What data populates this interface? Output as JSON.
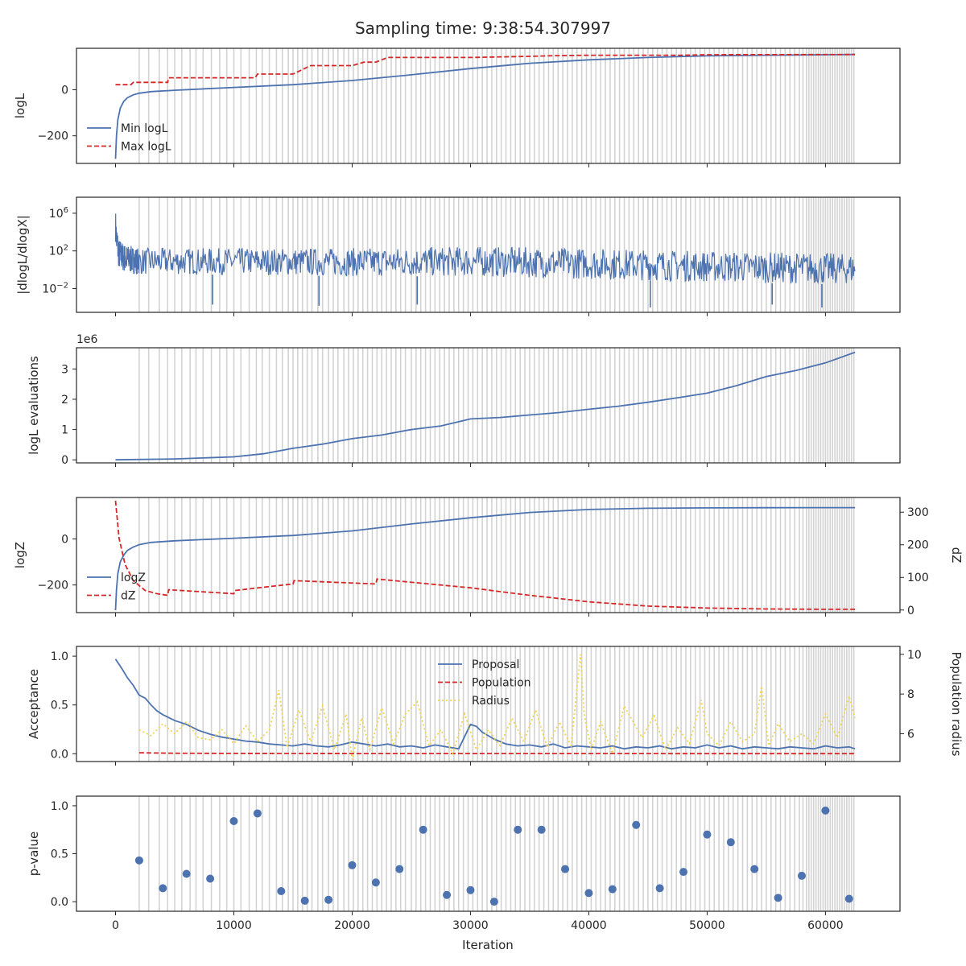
{
  "title": "Sampling time: 9:38:54.307997",
  "colors": {
    "blue": "#4c72b0",
    "red": "#d62728",
    "yellow": "#f2d54a",
    "grid": "#d3d3d3",
    "axis": "#262626"
  },
  "xaxis": {
    "label": "Iteration",
    "range": [
      -3300,
      66300
    ],
    "ticks": [
      0,
      10000,
      20000,
      30000,
      40000,
      50000,
      60000
    ],
    "tick_labels": [
      "0",
      "10000",
      "20000",
      "30000",
      "40000",
      "50000",
      "60000"
    ]
  },
  "chart_data": [
    {
      "type": "line",
      "panel": "logL",
      "ylabel": "logL",
      "ylim": [
        -320,
        180
      ],
      "yticks": [
        0,
        -200
      ],
      "ytick_labels": [
        "0",
        "−200"
      ],
      "legend": {
        "placement": "lower-left"
      },
      "series": [
        {
          "name": "Min logL",
          "style": "solid",
          "color": "#4c72b0",
          "x": [
            0,
            80,
            200,
            400,
            700,
            1000,
            1500,
            2000,
            3000,
            5000,
            10000,
            15000,
            20000,
            25000,
            30000,
            35000,
            40000,
            45000,
            50000,
            55000,
            60000,
            62500
          ],
          "y": [
            -300,
            -200,
            -130,
            -80,
            -50,
            -35,
            -22,
            -15,
            -8,
            -2,
            10,
            22,
            40,
            65,
            92,
            115,
            130,
            140,
            147,
            150,
            152,
            153
          ]
        },
        {
          "name": "Max logL",
          "style": "dashed",
          "color": "#d62728",
          "x": [
            0,
            1300,
            1500,
            2500,
            4400,
            4500,
            10000,
            11800,
            12000,
            15000,
            16500,
            20000,
            21000,
            22000,
            23000,
            30000,
            35000,
            37000,
            40000,
            48000,
            50000,
            62500
          ],
          "y": [
            22,
            22,
            32,
            32,
            32,
            52,
            52,
            52,
            68,
            68,
            105,
            105,
            120,
            120,
            140,
            140,
            145,
            148,
            150,
            150,
            152,
            153
          ]
        }
      ]
    },
    {
      "type": "line",
      "panel": "dlogL",
      "ylabel": "|dlogL/dlogX|",
      "yscale": "log",
      "ylim": [
        3e-05,
        50000000
      ],
      "yticks": [
        1000000,
        100,
        0.01
      ],
      "ytick_labels": [
        "10^6",
        "10^2",
        "10^-2"
      ],
      "band": {
        "x": [
          0,
          100,
          300,
          800,
          2000,
          10000,
          20000,
          30000,
          40000,
          50000,
          60000,
          62500
        ],
        "upper": [
          3000000,
          100000,
          2000,
          500,
          200,
          200,
          200,
          300,
          200,
          100,
          60,
          50
        ],
        "lower": [
          1000,
          10,
          1,
          0.5,
          0.3,
          0.3,
          0.2,
          0.2,
          0.1,
          0.05,
          0.03,
          0.03
        ]
      },
      "spikes": [
        {
          "x": 8200,
          "y": 0.0002
        },
        {
          "x": 17200,
          "y": 0.00015
        },
        {
          "x": 25500,
          "y": 0.0002
        },
        {
          "x": 45200,
          "y": 0.0001
        },
        {
          "x": 55500,
          "y": 0.0002
        },
        {
          "x": 59700,
          "y": 0.0001
        }
      ]
    },
    {
      "type": "line",
      "panel": "evaluations",
      "ylabel": "logL evaluations",
      "multiplier": "1e6",
      "ylim": [
        -0.1,
        3.7
      ],
      "yticks": [
        0,
        1,
        2,
        3
      ],
      "ytick_labels": [
        "0",
        "1",
        "2",
        "3"
      ],
      "series": [
        {
          "name": "",
          "style": "solid",
          "color": "#4c72b0",
          "x": [
            0,
            5000,
            10000,
            12500,
            15000,
            17500,
            20000,
            22500,
            25000,
            27500,
            30000,
            32500,
            35000,
            37500,
            40000,
            42500,
            45000,
            47500,
            50000,
            52500,
            55000,
            57500,
            60000,
            62500
          ],
          "y": [
            0,
            0.03,
            0.1,
            0.2,
            0.38,
            0.52,
            0.7,
            0.82,
            1.0,
            1.12,
            1.35,
            1.4,
            1.48,
            1.56,
            1.67,
            1.77,
            1.9,
            2.05,
            2.2,
            2.45,
            2.75,
            2.95,
            3.2,
            3.55
          ]
        }
      ]
    },
    {
      "type": "line",
      "panel": "logZ",
      "ylabel": "logZ",
      "y2label": "dZ",
      "ylim": [
        -320,
        180
      ],
      "yticks": [
        0,
        -200
      ],
      "ytick_labels": [
        "0",
        "−200"
      ],
      "y2lim": [
        -8,
        345
      ],
      "y2ticks": [
        0,
        100,
        200,
        300
      ],
      "y2tick_labels": [
        "0",
        "100",
        "200",
        "300"
      ],
      "legend": {
        "placement": "lower-left"
      },
      "series": [
        {
          "name": "logZ",
          "style": "solid",
          "color": "#4c72b0",
          "axis": "left",
          "x": [
            0,
            80,
            200,
            400,
            700,
            1000,
            1500,
            2000,
            3000,
            5000,
            10000,
            15000,
            20000,
            25000,
            30000,
            35000,
            40000,
            45000,
            50000,
            55000,
            60000,
            62500
          ],
          "y": [
            -310,
            -220,
            -150,
            -100,
            -70,
            -50,
            -35,
            -25,
            -15,
            -8,
            3,
            15,
            35,
            65,
            92,
            115,
            128,
            133,
            135,
            135.5,
            136,
            136
          ]
        },
        {
          "name": "dZ",
          "style": "dashed",
          "color": "#d62728",
          "axis": "right",
          "x": [
            0,
            300,
            800,
            1500,
            2500,
            3500,
            4400,
            4500,
            10000,
            10100,
            15000,
            15100,
            22000,
            22100,
            30000,
            35000,
            40000,
            45000,
            50000,
            55000,
            60000,
            62500
          ],
          "y": [
            335,
            220,
            140,
            90,
            60,
            50,
            45,
            62,
            50,
            60,
            80,
            90,
            80,
            95,
            68,
            45,
            25,
            12,
            6,
            3,
            2,
            2
          ]
        }
      ]
    },
    {
      "type": "line",
      "panel": "acceptance",
      "ylabel": "Acceptance",
      "y2label": "Population radius",
      "ylim": [
        -0.08,
        1.1
      ],
      "yticks": [
        0,
        0.5,
        1.0
      ],
      "ytick_labels": [
        "0.0",
        "0.5",
        "1.0"
      ],
      "y2lim": [
        4.6,
        10.4
      ],
      "y2ticks": [
        6,
        8,
        10
      ],
      "y2tick_labels": [
        "6",
        "8",
        "10"
      ],
      "legend": {
        "placement": "upper-center"
      },
      "series": [
        {
          "name": "Proposal",
          "style": "solid",
          "color": "#4c72b0",
          "axis": "left",
          "x": [
            0,
            500,
            1000,
            1500,
            2000,
            2500,
            3000,
            3500,
            4000,
            5000,
            6000,
            7000,
            8000,
            9000,
            10000,
            11000,
            12000,
            13000,
            14000,
            15000,
            16000,
            17000,
            18000,
            19000,
            20000,
            21000,
            22000,
            23000,
            24000,
            25000,
            26000,
            27000,
            28000,
            29000,
            30000,
            30500,
            31000,
            32000,
            33000,
            34000,
            35000,
            36000,
            37000,
            38000,
            39000,
            40000,
            41000,
            42000,
            43000,
            44000,
            45000,
            46000,
            47000,
            48000,
            49000,
            50000,
            51000,
            52000,
            53000,
            54000,
            55000,
            56000,
            57000,
            58000,
            59000,
            60000,
            61000,
            62000,
            62500
          ],
          "y": [
            0.97,
            0.88,
            0.78,
            0.7,
            0.6,
            0.57,
            0.5,
            0.44,
            0.4,
            0.34,
            0.3,
            0.24,
            0.2,
            0.17,
            0.15,
            0.13,
            0.12,
            0.1,
            0.09,
            0.08,
            0.1,
            0.08,
            0.07,
            0.09,
            0.12,
            0.1,
            0.08,
            0.1,
            0.07,
            0.08,
            0.06,
            0.09,
            0.07,
            0.05,
            0.3,
            0.28,
            0.22,
            0.15,
            0.1,
            0.08,
            0.09,
            0.07,
            0.1,
            0.06,
            0.08,
            0.07,
            0.06,
            0.08,
            0.05,
            0.07,
            0.06,
            0.08,
            0.05,
            0.07,
            0.06,
            0.09,
            0.06,
            0.08,
            0.05,
            0.07,
            0.06,
            0.05,
            0.07,
            0.06,
            0.05,
            0.08,
            0.06,
            0.07,
            0.05
          ]
        },
        {
          "name": "Population",
          "style": "dashed",
          "color": "#d62728",
          "axis": "left",
          "x": [
            2000,
            5000,
            10000,
            20000,
            30000,
            40000,
            50000,
            62500
          ],
          "y": [
            0.01,
            0.005,
            0.003,
            0.002,
            0.002,
            0.002,
            0.001,
            0.001
          ]
        },
        {
          "name": "Radius",
          "style": "dotted",
          "color": "#f2d54a",
          "axis": "right",
          "x": [
            2000,
            3000,
            4000,
            5000,
            6000,
            7000,
            8000,
            9000,
            10000,
            11000,
            12000,
            13000,
            13800,
            14500,
            15500,
            16500,
            17500,
            18500,
            19500,
            20000,
            20800,
            21500,
            22500,
            23500,
            24500,
            25500,
            26500,
            27500,
            28500,
            29500,
            30500,
            31500,
            32500,
            33500,
            34500,
            35500,
            36500,
            37500,
            38500,
            39300,
            39600,
            40200,
            41000,
            42000,
            43000,
            44500,
            45500,
            46500,
            47500,
            48500,
            49500,
            50000,
            51000,
            52000,
            53000,
            54000,
            54600,
            55200,
            56000,
            57000,
            58000,
            59000,
            60000,
            61000,
            62000,
            62500
          ],
          "y": [
            6.2,
            5.9,
            6.5,
            6.0,
            6.6,
            5.8,
            5.7,
            6.2,
            5.5,
            6.4,
            5.6,
            6.2,
            8.2,
            5.3,
            7.2,
            5.6,
            7.4,
            5.2,
            7.0,
            4.7,
            6.8,
            5.2,
            7.3,
            5.5,
            7.0,
            7.6,
            5.4,
            6.2,
            5.0,
            7.0,
            5.2,
            6.2,
            5.4,
            6.8,
            5.6,
            7.2,
            5.3,
            6.6,
            5.4,
            10.0,
            7.0,
            5.2,
            6.6,
            5.0,
            7.4,
            5.8,
            6.9,
            5.2,
            6.3,
            5.5,
            7.7,
            6.0,
            5.4,
            6.6,
            5.6,
            6.0,
            8.4,
            5.4,
            6.5,
            5.6,
            6.0,
            5.5,
            7.0,
            5.8,
            7.9,
            6.8
          ]
        }
      ]
    },
    {
      "type": "scatter",
      "panel": "pvalue",
      "ylabel": "p-value",
      "ylim": [
        -0.1,
        1.1
      ],
      "yticks": [
        0,
        0.5,
        1.0
      ],
      "ytick_labels": [
        "0.0",
        "0.5",
        "1.0"
      ],
      "series": [
        {
          "name": "",
          "color": "#4c72b0",
          "x": [
            2000,
            4000,
            6000,
            8000,
            10000,
            12000,
            14000,
            16000,
            18000,
            20000,
            22000,
            24000,
            26000,
            28000,
            30000,
            32000,
            34000,
            36000,
            38000,
            40000,
            42000,
            44000,
            46000,
            48000,
            50000,
            52000,
            54000,
            56000,
            58000,
            60000,
            62000
          ],
          "y": [
            0.43,
            0.14,
            0.29,
            0.24,
            0.84,
            0.92,
            0.11,
            0.01,
            0.02,
            0.38,
            0.2,
            0.34,
            0.75,
            0.07,
            0.12,
            0.0,
            0.75,
            0.75,
            0.34,
            0.09,
            0.13,
            0.8,
            0.14,
            0.31,
            0.7,
            0.62,
            0.34,
            0.04,
            0.27,
            0.95,
            0.03
          ]
        }
      ]
    }
  ],
  "event_lines": [
    2000,
    2800,
    3700,
    4400,
    5000,
    5600,
    6300,
    6800,
    7400,
    8100,
    8800,
    9400,
    10000,
    10600,
    11300,
    11900,
    12400,
    13000,
    13600,
    14100,
    14600,
    15000,
    15400,
    15800,
    16200,
    16600,
    17100,
    17500,
    18000,
    18400,
    18800,
    19300,
    19700,
    20100,
    20500,
    20900,
    21300,
    21700,
    22100,
    22500,
    22900,
    23300,
    23700,
    24100,
    24500,
    25000,
    25400,
    25800,
    26200,
    26600,
    27000,
    27400,
    27800,
    28200,
    28600,
    29000,
    29400,
    29800,
    30200,
    30600,
    31000,
    31400,
    31800,
    32200,
    32600,
    33000,
    33400,
    33800,
    34200,
    34600,
    35000,
    35400,
    35800,
    36200,
    36600,
    37000,
    37400,
    37800,
    38200,
    38600,
    39000,
    39400,
    39800,
    40200,
    40600,
    41000,
    41400,
    41800,
    42200,
    42600,
    43000,
    43400,
    43800,
    44200,
    44600,
    45000,
    45400,
    45800,
    46200,
    46600,
    47000,
    47400,
    47800,
    48200,
    48600,
    49000,
    49400,
    49800,
    50200,
    50600,
    51000,
    51400,
    51800,
    52200,
    52600,
    53000,
    53400,
    53800,
    54200,
    54600,
    55000,
    55400,
    55800,
    56200,
    56600,
    57000,
    57400,
    57800,
    58100,
    58400,
    58600,
    58800,
    59000,
    59200,
    59400,
    59600,
    59800,
    60000,
    60200,
    60400,
    60600,
    60800,
    61000,
    61200,
    61400,
    61600,
    61800,
    62000,
    62200,
    62400
  ]
}
